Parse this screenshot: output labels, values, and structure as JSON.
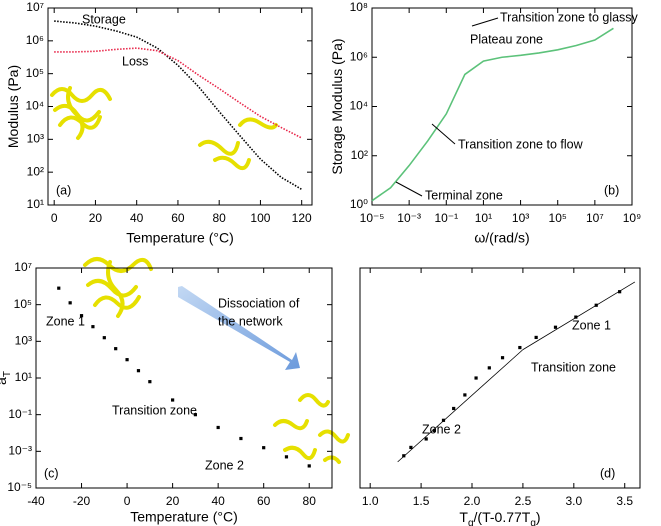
{
  "chart_data": [
    {
      "type": "line",
      "panel_label": "(a)",
      "xlabel": "Temperature (°C)",
      "ylabel": "Modulus (Pa)",
      "x": [
        0,
        10,
        20,
        30,
        40,
        50,
        60,
        70,
        80,
        90,
        100,
        110,
        120
      ],
      "series": [
        {
          "name": "Storage",
          "color": "#000000",
          "values": [
            4000000,
            3500000,
            2800000,
            2000000,
            1300000,
            600000,
            180000,
            40000,
            7000,
            1300,
            250,
            70,
            30
          ]
        },
        {
          "name": "Loss",
          "color": "#e8274a",
          "values": [
            460000,
            460000,
            480000,
            550000,
            600000,
            500000,
            250000,
            90000,
            35000,
            13000,
            5000,
            2300,
            1100
          ]
        }
      ],
      "xlim": [
        -3,
        125
      ],
      "xticks": [
        0,
        20,
        40,
        60,
        80,
        100,
        120
      ],
      "ylim": [
        10,
        10000000
      ],
      "ylog": true,
      "yticks": [
        {
          "value": 10,
          "label": "10¹"
        },
        {
          "value": 100,
          "label": "10²"
        },
        {
          "value": 1000,
          "label": "10³"
        },
        {
          "value": 10000,
          "label": "10⁴"
        },
        {
          "value": 100000,
          "label": "10⁵"
        },
        {
          "value": 1000000,
          "label": "10⁶"
        },
        {
          "value": 10000000,
          "label": "10⁷"
        }
      ]
    },
    {
      "type": "line",
      "panel_label": "(b)",
      "xlabel": "ω/(rad/s)",
      "ylabel": "Storage Modulus (Pa)",
      "x": [
        1e-05,
        0.0001,
        0.001,
        0.01,
        0.1,
        1,
        10,
        100,
        1000,
        10000,
        100000,
        1000000,
        10000000,
        100000000
      ],
      "series": [
        {
          "color": "#5cc27a",
          "values": [
            1.5,
            5,
            40,
            400,
            5000,
            200000,
            700000,
            1000000,
            1200000,
            1500000,
            2000000,
            3000000,
            5000000,
            15000000
          ]
        }
      ],
      "xlim": [
        1e-05,
        1000000000
      ],
      "xlog": true,
      "xticks": [
        {
          "value": 1e-05,
          "label": "10⁻⁵"
        },
        {
          "value": 0.001,
          "label": "10⁻³"
        },
        {
          "value": 0.1,
          "label": "10⁻¹"
        },
        {
          "value": 10,
          "label": "10¹"
        },
        {
          "value": 1000,
          "label": "10³"
        },
        {
          "value": 100000,
          "label": "10⁵"
        },
        {
          "value": 10000000,
          "label": "10⁷"
        },
        {
          "value": 1000000000,
          "label": "10⁹"
        }
      ],
      "ylim": [
        1,
        100000000
      ],
      "ylog": true,
      "yticks": [
        {
          "value": 1,
          "label": "10⁰"
        },
        {
          "value": 100,
          "label": "10²"
        },
        {
          "value": 10000,
          "label": "10⁴"
        },
        {
          "value": 1000000,
          "label": "10⁶"
        },
        {
          "value": 100000000,
          "label": "10⁸"
        }
      ],
      "annotations": [
        "Transition zone to glassy",
        "Plateau zone",
        "Transition zone to flow",
        "Terminal zone"
      ]
    },
    {
      "type": "scatter",
      "panel_label": "(c)",
      "xlabel": "Temperature (°C)",
      "ylabel": "a",
      "ylabel_sub": "T",
      "x": [
        -30,
        -25,
        -20,
        -15,
        -10,
        -5,
        0,
        5,
        10,
        20,
        30,
        40,
        50,
        60,
        70,
        80
      ],
      "series": [
        {
          "color": "#000000",
          "values": [
            794000,
            126000,
            25100,
            6310,
            1580,
            398,
            100,
            25.1,
            6.31,
            0.631,
            0.1,
            0.02,
            0.005,
            0.00158,
            0.0005,
            0.00016
          ]
        }
      ],
      "xlim": [
        -40,
        90
      ],
      "xticks": [
        -40,
        -20,
        0,
        20,
        40,
        60,
        80
      ],
      "ylim": [
        1e-05,
        10000000
      ],
      "ylog": true,
      "yticks": [
        {
          "value": 1e-05,
          "label": "10⁻⁵"
        },
        {
          "value": 0.001,
          "label": "10⁻³"
        },
        {
          "value": 0.1,
          "label": "10⁻¹"
        },
        {
          "value": 10,
          "label": "10¹"
        },
        {
          "value": 1000,
          "label": "10³"
        },
        {
          "value": 100000,
          "label": "10⁵"
        },
        {
          "value": 10000000,
          "label": "10⁷"
        }
      ],
      "annotations": [
        "Dissociation of",
        "the network",
        "Zone 1",
        "Transition zone",
        "Zone 2"
      ]
    },
    {
      "type": "scatter",
      "panel_label": "(d)",
      "xlabel_parts": [
        {
          "text": "T"
        },
        {
          "text": "g",
          "sub": true
        },
        {
          "text": "/(T-0.77T"
        },
        {
          "text": "g",
          "sub": true
        },
        {
          "text": ")"
        }
      ],
      "x": [
        3.45,
        3.22,
        3.02,
        2.82,
        2.63,
        2.47,
        2.3,
        2.17,
        2.04,
        1.93,
        1.82,
        1.72,
        1.63,
        1.55,
        1.4,
        1.33
      ],
      "series": [
        {
          "color": "#000000",
          "values": [
            794000,
            126000,
            25100,
            6310,
            1580,
            398,
            100,
            25.1,
            6.31,
            0.631,
            0.1,
            0.02,
            0.005,
            0.00158,
            0.0005,
            0.00016
          ]
        }
      ],
      "fits": [
        {
          "x": [
            1.27,
            2.5
          ],
          "values": [
            7e-05,
            300
          ]
        },
        {
          "x": [
            2.5,
            3.6
          ],
          "values": [
            300,
            3000000
          ]
        }
      ],
      "xlim": [
        0.9,
        3.65
      ],
      "xticks": [
        {
          "value": 1,
          "label": "1.0"
        },
        1.5,
        {
          "value": 2,
          "label": "2.0"
        },
        2.5,
        {
          "value": 3,
          "label": "3.0"
        },
        3.5
      ],
      "ylim": [
        2e-06,
        20000000
      ],
      "ylog": true,
      "annotations": [
        "Zone 1",
        "Transition zone",
        "Zone 2"
      ]
    }
  ]
}
